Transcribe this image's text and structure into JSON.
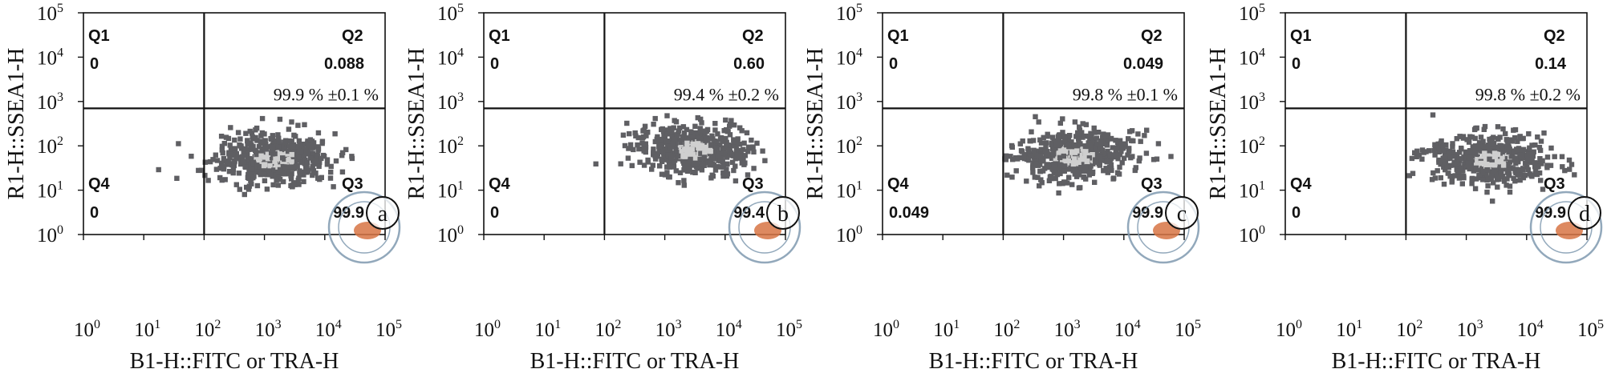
{
  "figure": {
    "panels": [
      {
        "letter": "a",
        "q1": {
          "label": "Q1",
          "value": "0"
        },
        "q2": {
          "label": "Q2",
          "value": "0.088"
        },
        "q3": {
          "label": "Q3",
          "value": "99.9"
        },
        "q4": {
          "label": "Q4",
          "value": "0"
        },
        "annotation": "99.9 % ±0.1 %"
      },
      {
        "letter": "b",
        "q1": {
          "label": "Q1",
          "value": "0"
        },
        "q2": {
          "label": "Q2",
          "value": "0.60"
        },
        "q3": {
          "label": "Q3",
          "value": "99.4"
        },
        "q4": {
          "label": "Q4",
          "value": "0"
        },
        "annotation": "99.4 % ±0.2 %"
      },
      {
        "letter": "c",
        "q1": {
          "label": "Q1",
          "value": "0"
        },
        "q2": {
          "label": "Q2",
          "value": "0.049"
        },
        "q3": {
          "label": "Q3",
          "value": "99.9"
        },
        "q4": {
          "label": "Q4",
          "value": "0.049"
        },
        "annotation": "99.8 % ±0.1 %"
      },
      {
        "letter": "d",
        "q1": {
          "label": "Q1",
          "value": "0"
        },
        "q2": {
          "label": "Q2",
          "value": "0.14"
        },
        "q3": {
          "label": "Q3",
          "value": "99.9"
        },
        "q4": {
          "label": "Q4",
          "value": "0"
        },
        "annotation": "99.8 % ±0.2 %"
      }
    ]
  },
  "chart_data": [
    {
      "type": "scatter",
      "panel": "a",
      "xlabel": "B1-H::FITC or TRA-H",
      "ylabel": "R1-H::SSEA1-H",
      "x_scale": "log",
      "y_scale": "log",
      "xlim": [
        1,
        100000
      ],
      "ylim": [
        1,
        100000
      ],
      "gate_x": 100,
      "gate_y": 700,
      "cluster": {
        "x_center": 1500,
        "y_center": 50
      }
    },
    {
      "type": "scatter",
      "panel": "b",
      "xlabel": "B1-H::FITC or TRA-H",
      "ylabel": "R1-H::SSEA1-H",
      "x_scale": "log",
      "y_scale": "log",
      "xlim": [
        1,
        100000
      ],
      "ylim": [
        1,
        100000
      ],
      "gate_x": 100,
      "gate_y": 700,
      "cluster": {
        "x_center": 3000,
        "y_center": 80
      }
    },
    {
      "type": "scatter",
      "panel": "c",
      "xlabel": "B1-H::FITC or TRA-H",
      "ylabel": "R1-H::SSEA1-H",
      "x_scale": "log",
      "y_scale": "log",
      "xlim": [
        1,
        100000
      ],
      "ylim": [
        1,
        100000
      ],
      "gate_x": 100,
      "gate_y": 700,
      "cluster": {
        "x_center": 1500,
        "y_center": 60
      }
    },
    {
      "type": "scatter",
      "panel": "d",
      "xlabel": "B1-H::FITC or TRA-H",
      "ylabel": "R1-H::SSEA1-H",
      "x_scale": "log",
      "y_scale": "log",
      "xlim": [
        1,
        100000
      ],
      "ylim": [
        1,
        100000
      ],
      "gate_x": 100,
      "gate_y": 700,
      "cluster": {
        "x_center": 2500,
        "y_center": 50
      }
    }
  ],
  "colors": {
    "dots_dark": "#5f5f63",
    "dots_light": "#cfcfcf",
    "seal": "#7f9ab0",
    "seal_fill": "#d87545"
  }
}
